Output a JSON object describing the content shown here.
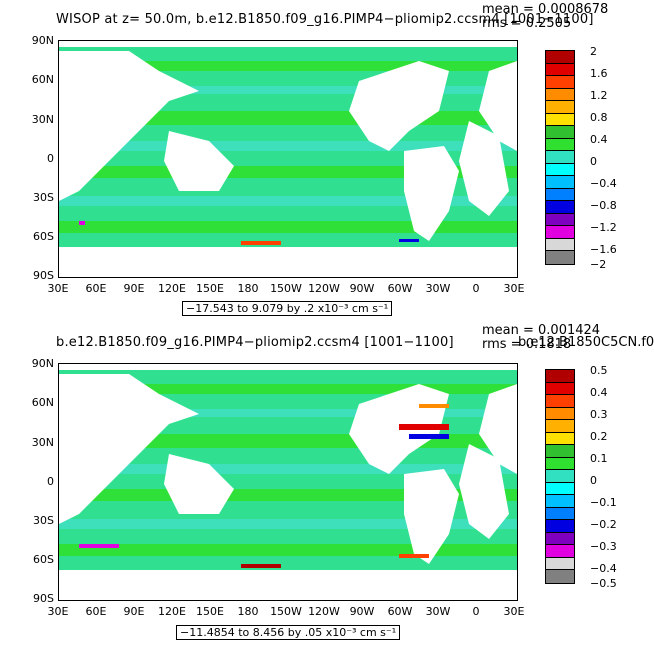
{
  "panel1": {
    "title": "WISOP at z=   50.0m, b.e12.B1850.f09_g16.PIMP4−pliomip2.ccsm4 [1001−1100]",
    "mean": "mean = 0.0008678",
    "rms": "rms = 0.2505",
    "range": "−17.543 to 9.079 by .2 x10⁻³ cm s⁻¹",
    "legend_labels": [
      "2",
      "1.6",
      "1.2",
      "0.8",
      "0.4",
      "0",
      "−0.4",
      "−0.8",
      "−1.2",
      "−1.6",
      "−2"
    ]
  },
  "panel2": {
    "title": "b.e12.B1850.f09_g16.PIMP4−pliomip2.ccsm4 [1001−1100]",
    "title2": "b.e12.B1850C5CN.f0",
    "mean": "mean = 0.001424",
    "rms": "rms = 0.1818",
    "range": "−11.4854 to 8.456 by .05 x10⁻³ cm s⁻¹",
    "legend_labels": [
      "0.5",
      "0.4",
      "0.3",
      "0.2",
      "0.1",
      "0",
      "−0.1",
      "−0.2",
      "−0.3",
      "−0.4",
      "−0.5"
    ]
  },
  "axes": {
    "lat_labels": [
      "90N",
      "60N",
      "30N",
      "0",
      "30S",
      "60S",
      "90S"
    ],
    "lon_labels": [
      "30E",
      "60E",
      "90E",
      "120E",
      "150E",
      "180",
      "150W",
      "120W",
      "90W",
      "60W",
      "30W",
      "0",
      "30E"
    ]
  },
  "colors": {
    "ocean": "#2fe02f",
    "ocean_neg": "#3fe0c0",
    "land": "#ffffff",
    "legend": [
      "#b00000",
      "#e00000",
      "#ff4000",
      "#ff8c00",
      "#ffb000",
      "#ffe000",
      "#30c030",
      "#30e030",
      "#30e0c0",
      "#00ffff",
      "#00c0ff",
      "#0080ff",
      "#0000e0",
      "#8000c0",
      "#e000e0",
      "#d8d8d8",
      "#808080"
    ]
  }
}
